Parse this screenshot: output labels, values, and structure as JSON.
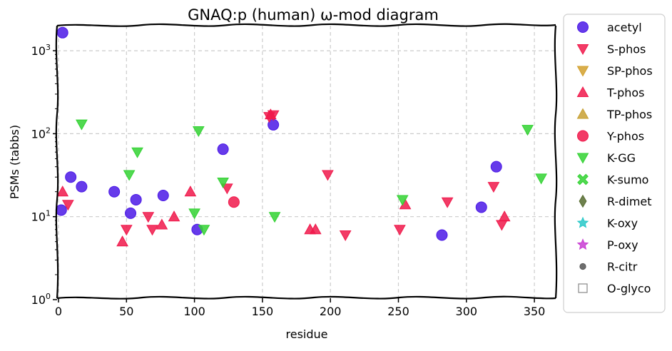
{
  "chart_data": {
    "type": "scatter",
    "title": "GNAQ:p (human) ω-mod diagram",
    "xlabel": "residue",
    "ylabel": "PSMs (tabbs)",
    "xlim": [
      -2,
      368
    ],
    "ylim": [
      1,
      2200
    ],
    "yscale": "log",
    "grid": true,
    "legend_position": "right outside",
    "xticks": [
      {
        "value": 0,
        "label": "0"
      },
      {
        "value": 50,
        "label": "50"
      },
      {
        "value": 100,
        "label": "100"
      },
      {
        "value": 150,
        "label": "150"
      },
      {
        "value": 200,
        "label": "200"
      },
      {
        "value": 250,
        "label": "250"
      },
      {
        "value": 300,
        "label": "300"
      },
      {
        "value": 350,
        "label": "350"
      }
    ],
    "yticks": [
      {
        "value": 1,
        "base": "10",
        "exp": "0"
      },
      {
        "value": 10,
        "base": "10",
        "exp": "1"
      },
      {
        "value": 100,
        "base": "10",
        "exp": "2"
      },
      {
        "value": 1000,
        "base": "10",
        "exp": "3"
      }
    ],
    "series": [
      {
        "name": "acetyl",
        "marker": "circle",
        "color": "#4b19e6",
        "points": [
          [
            3,
            1650
          ],
          [
            2,
            12
          ],
          [
            9,
            30
          ],
          [
            17,
            23
          ],
          [
            41,
            20
          ],
          [
            53,
            11
          ],
          [
            57,
            16
          ],
          [
            77,
            18
          ],
          [
            102,
            7
          ],
          [
            121,
            65
          ],
          [
            158,
            128
          ],
          [
            282,
            6
          ],
          [
            311,
            13
          ],
          [
            322,
            40
          ]
        ]
      },
      {
        "name": "S-phos",
        "marker": "triangle-down",
        "color": "#f0194b",
        "points": [
          [
            7,
            14
          ],
          [
            50,
            7
          ],
          [
            66,
            10
          ],
          [
            69,
            7
          ],
          [
            124,
            22
          ],
          [
            198,
            32
          ],
          [
            211,
            6
          ],
          [
            251,
            7
          ],
          [
            286,
            15
          ],
          [
            320,
            23
          ],
          [
            326,
            8
          ],
          [
            155,
            160
          ],
          [
            158,
            168
          ]
        ]
      },
      {
        "name": "SP-phos",
        "marker": "triangle-down",
        "color": "#d2a02d",
        "points": []
      },
      {
        "name": "T-phos",
        "marker": "triangle-up",
        "color": "#f0194b",
        "points": [
          [
            3,
            20
          ],
          [
            47,
            5
          ],
          [
            76,
            8
          ],
          [
            85,
            10
          ],
          [
            97,
            20
          ],
          [
            156,
            170
          ],
          [
            185,
            7
          ],
          [
            189,
            7
          ],
          [
            255,
            14
          ],
          [
            328,
            10
          ]
        ]
      },
      {
        "name": "TP-phos",
        "marker": "triangle-up",
        "color": "#c8a032",
        "points": []
      },
      {
        "name": "Y-phos",
        "marker": "circle",
        "color": "#f0194b",
        "points": [
          [
            129,
            15
          ]
        ]
      },
      {
        "name": "K-GG",
        "marker": "triangle-down",
        "color": "#32d232",
        "points": [
          [
            17,
            130
          ],
          [
            52,
            32
          ],
          [
            58,
            60
          ],
          [
            100,
            11
          ],
          [
            103,
            108
          ],
          [
            107,
            7
          ],
          [
            121,
            26
          ],
          [
            159,
            10
          ],
          [
            253,
            16
          ],
          [
            345,
            112
          ],
          [
            355,
            29
          ]
        ]
      },
      {
        "name": "K-sumo",
        "marker": "x",
        "color": "#32d232",
        "points": []
      },
      {
        "name": "R-dimet",
        "marker": "diamond",
        "color": "#556b2f",
        "points": []
      },
      {
        "name": "K-oxy",
        "marker": "star",
        "color": "#28c8c8",
        "points": []
      },
      {
        "name": "P-oxy",
        "marker": "star",
        "color": "#c83cd2",
        "points": []
      },
      {
        "name": "R-citr",
        "marker": "small-circle",
        "color": "#555555",
        "points": []
      },
      {
        "name": "O-glyco",
        "marker": "square-open",
        "color": "#888888",
        "points": []
      }
    ]
  }
}
